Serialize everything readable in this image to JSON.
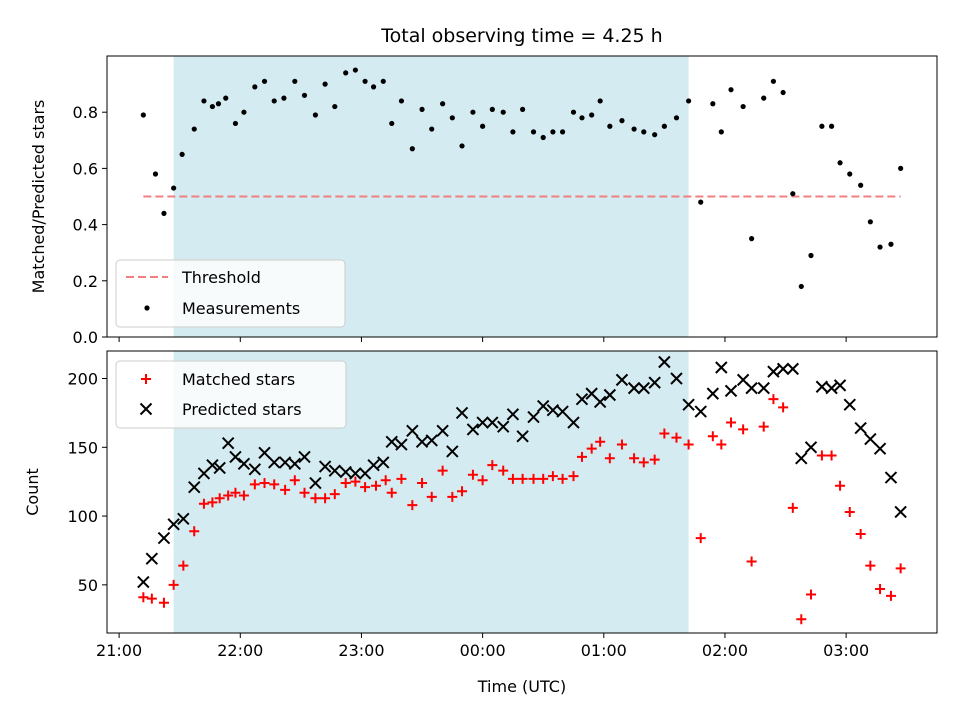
{
  "chart_data": [
    {
      "type": "scatter",
      "title": "Total observing time = 4.25 h",
      "ylabel": "Matched/Predicted stars",
      "ylim": [
        0,
        1.0
      ],
      "yticks": [
        0.0,
        0.2,
        0.4,
        0.6,
        0.8
      ],
      "ytick_labels": [
        "0.0",
        "0.2",
        "0.4",
        "0.6",
        "0.8"
      ],
      "xlim_hours": [
        20.9,
        27.75
      ],
      "shaded_span_hours": [
        21.45,
        25.7
      ],
      "shaded_color": "#d4ebf1",
      "threshold": {
        "name": "Threshold",
        "value": 0.5,
        "x_range_hours": [
          21.2,
          27.45
        ],
        "color": "#f08080"
      },
      "series": [
        {
          "name": "Measurements",
          "color": "#000000",
          "marker": "dot",
          "x": [
            21.2,
            21.3,
            21.37,
            21.45,
            21.52,
            21.62,
            21.7,
            21.77,
            21.82,
            21.88,
            21.96,
            22.03,
            22.12,
            22.2,
            22.28,
            22.36,
            22.45,
            22.53,
            22.62,
            22.7,
            22.78,
            22.87,
            22.95,
            23.03,
            23.1,
            23.18,
            23.25,
            23.33,
            23.42,
            23.5,
            23.58,
            23.67,
            23.75,
            23.83,
            23.92,
            24.0,
            24.08,
            24.17,
            24.25,
            24.33,
            24.42,
            24.5,
            24.58,
            24.66,
            24.75,
            24.82,
            24.9,
            24.97,
            25.05,
            25.15,
            25.25,
            25.33,
            25.42,
            25.5,
            25.6,
            25.7,
            25.8,
            25.9,
            25.97,
            26.05,
            26.15,
            26.22,
            26.32,
            26.4,
            26.48,
            26.56,
            26.63,
            26.71,
            26.8,
            26.88,
            26.95,
            27.03,
            27.12,
            27.2,
            27.28,
            27.37,
            27.45
          ],
          "y": [
            0.79,
            0.58,
            0.44,
            0.53,
            0.65,
            0.74,
            0.84,
            0.82,
            0.83,
            0.85,
            0.76,
            0.8,
            0.89,
            0.91,
            0.84,
            0.85,
            0.91,
            0.86,
            0.79,
            0.9,
            0.82,
            0.94,
            0.95,
            0.91,
            0.89,
            0.91,
            0.76,
            0.84,
            0.67,
            0.81,
            0.74,
            0.83,
            0.78,
            0.68,
            0.8,
            0.75,
            0.81,
            0.8,
            0.73,
            0.81,
            0.73,
            0.71,
            0.73,
            0.73,
            0.8,
            0.78,
            0.79,
            0.84,
            0.75,
            0.77,
            0.74,
            0.73,
            0.72,
            0.75,
            0.78,
            0.84,
            0.48,
            0.83,
            0.73,
            0.88,
            0.82,
            0.35,
            0.85,
            0.91,
            0.87,
            0.51,
            0.18,
            0.29,
            0.75,
            0.75,
            0.62,
            0.58,
            0.54,
            0.41,
            0.32,
            0.33,
            0.6
          ]
        }
      ],
      "legend": {
        "position": "lower-left",
        "entries": [
          "Threshold",
          "Measurements"
        ]
      }
    },
    {
      "type": "scatter",
      "xlabel": "Time (UTC)",
      "ylabel": "Count",
      "ylim": [
        15,
        220
      ],
      "yticks": [
        50,
        100,
        150,
        200
      ],
      "ytick_labels": [
        "50",
        "100",
        "150",
        "200"
      ],
      "xlim_hours": [
        20.9,
        27.75
      ],
      "xticks_hours": [
        21,
        22,
        23,
        24,
        25,
        26,
        27
      ],
      "xtick_labels": [
        "21:00",
        "22:00",
        "23:00",
        "00:00",
        "01:00",
        "02:00",
        "03:00"
      ],
      "shaded_span_hours": [
        21.45,
        25.7
      ],
      "shaded_color": "#d4ebf1",
      "series": [
        {
          "name": "Matched stars",
          "color": "#ff0000",
          "marker": "plus",
          "x": [
            21.2,
            21.27,
            21.37,
            21.45,
            21.53,
            21.62,
            21.7,
            21.77,
            21.83,
            21.9,
            21.96,
            22.03,
            22.12,
            22.2,
            22.28,
            22.37,
            22.45,
            22.53,
            22.62,
            22.7,
            22.78,
            22.87,
            22.95,
            23.03,
            23.12,
            23.2,
            23.25,
            23.33,
            23.42,
            23.5,
            23.58,
            23.67,
            23.75,
            23.83,
            23.92,
            24.0,
            24.08,
            24.17,
            24.25,
            24.33,
            24.42,
            24.5,
            24.58,
            24.66,
            24.75,
            24.82,
            24.9,
            24.97,
            25.05,
            25.15,
            25.25,
            25.33,
            25.42,
            25.5,
            25.6,
            25.7,
            25.8,
            25.9,
            25.97,
            26.05,
            26.15,
            26.22,
            26.32,
            26.4,
            26.48,
            26.56,
            26.63,
            26.71,
            26.8,
            26.88,
            26.95,
            27.03,
            27.12,
            27.2,
            27.28,
            27.37,
            27.45
          ],
          "y": [
            41,
            40,
            37,
            50,
            64,
            89,
            109,
            110,
            113,
            115,
            117,
            115,
            123,
            124,
            123,
            119,
            126,
            117,
            113,
            113,
            116,
            124,
            125,
            121,
            122,
            126,
            117,
            127,
            108,
            124,
            114,
            133,
            114,
            118,
            130,
            126,
            137,
            133,
            127,
            127,
            127,
            127,
            129,
            127,
            129,
            143,
            149,
            154,
            142,
            152,
            142,
            139,
            141,
            160,
            157,
            152,
            84,
            158,
            152,
            168,
            163,
            67,
            165,
            185,
            179,
            106,
            25,
            43,
            144,
            144,
            122,
            103,
            87,
            64,
            47,
            42,
            62
          ]
        },
        {
          "name": "Predicted stars",
          "color": "#000000",
          "marker": "x",
          "x": [
            21.2,
            21.27,
            21.37,
            21.45,
            21.53,
            21.62,
            21.7,
            21.77,
            21.83,
            21.9,
            21.96,
            22.03,
            22.12,
            22.2,
            22.28,
            22.37,
            22.45,
            22.53,
            22.62,
            22.7,
            22.78,
            22.87,
            22.95,
            23.03,
            23.1,
            23.18,
            23.25,
            23.33,
            23.42,
            23.5,
            23.58,
            23.67,
            23.75,
            23.83,
            23.92,
            24.0,
            24.08,
            24.17,
            24.25,
            24.33,
            24.42,
            24.5,
            24.58,
            24.66,
            24.75,
            24.82,
            24.9,
            24.97,
            25.05,
            25.15,
            25.25,
            25.33,
            25.42,
            25.5,
            25.6,
            25.7,
            25.8,
            25.9,
            25.97,
            26.05,
            26.15,
            26.22,
            26.32,
            26.4,
            26.48,
            26.56,
            26.63,
            26.71,
            26.8,
            26.88,
            26.95,
            27.03,
            27.12,
            27.2,
            27.28,
            27.37,
            27.45
          ],
          "y": [
            52,
            69,
            84,
            94,
            98,
            121,
            131,
            137,
            135,
            153,
            143,
            138,
            134,
            146,
            139,
            139,
            138,
            143,
            124,
            136,
            133,
            132,
            131,
            131,
            137,
            139,
            154,
            152,
            162,
            154,
            155,
            162,
            147,
            175,
            163,
            168,
            168,
            165,
            174,
            158,
            172,
            180,
            177,
            176,
            168,
            185,
            189,
            183,
            188,
            199,
            193,
            193,
            197,
            212,
            200,
            181,
            176,
            189,
            208,
            191,
            199,
            193,
            193,
            205,
            207,
            207,
            142,
            150,
            194,
            193,
            195,
            181,
            164,
            156,
            149,
            128,
            103
          ]
        }
      ],
      "legend": {
        "position": "upper-left",
        "entries": [
          "Matched stars",
          "Predicted stars"
        ]
      }
    }
  ]
}
